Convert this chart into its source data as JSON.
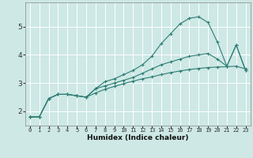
{
  "xlabel": "Humidex (Indice chaleur)",
  "background_color": "#cde8e5",
  "grid_color": "#b0d8d4",
  "line_color": "#2d7d74",
  "xlim": [
    -0.5,
    23.5
  ],
  "ylim": [
    1.5,
    5.85
  ],
  "xticks": [
    0,
    1,
    2,
    3,
    4,
    5,
    6,
    7,
    8,
    9,
    10,
    11,
    12,
    13,
    14,
    15,
    16,
    17,
    18,
    19,
    20,
    21,
    22,
    23
  ],
  "yticks": [
    2,
    3,
    4,
    5
  ],
  "series": [
    [
      1.8,
      1.8,
      2.45,
      2.6,
      2.6,
      2.55,
      2.5,
      2.8,
      3.05,
      3.15,
      3.3,
      3.45,
      3.65,
      3.95,
      4.4,
      4.75,
      5.1,
      5.3,
      5.35,
      5.15,
      4.45,
      3.6,
      4.35,
      3.45
    ],
    [
      1.8,
      1.8,
      2.45,
      2.6,
      2.6,
      2.55,
      2.5,
      2.8,
      2.9,
      3.0,
      3.1,
      3.2,
      3.35,
      3.5,
      3.65,
      3.75,
      3.85,
      3.95,
      4.0,
      4.05,
      3.85,
      3.6,
      4.35,
      3.45
    ],
    [
      1.8,
      1.8,
      2.45,
      2.6,
      2.6,
      2.55,
      2.5,
      2.65,
      2.78,
      2.88,
      2.98,
      3.07,
      3.15,
      3.22,
      3.3,
      3.37,
      3.43,
      3.48,
      3.52,
      3.55,
      3.57,
      3.58,
      3.6,
      3.5
    ]
  ]
}
